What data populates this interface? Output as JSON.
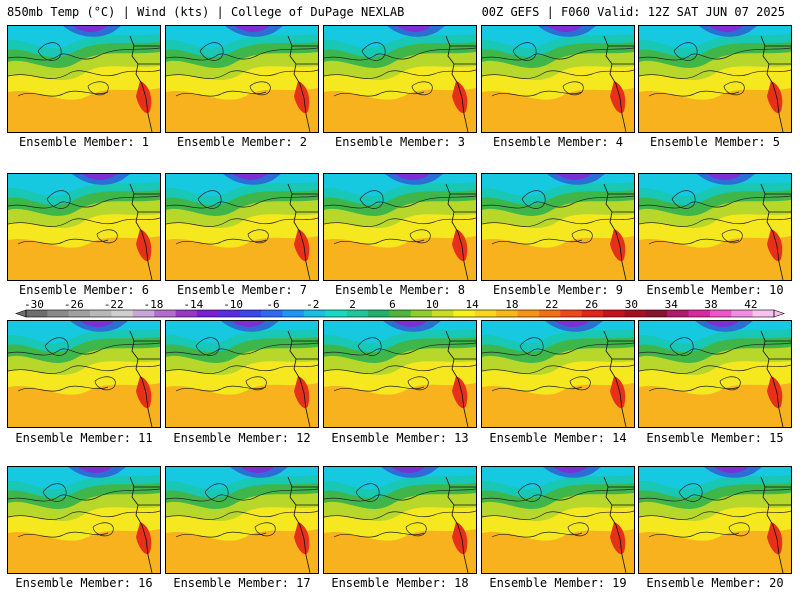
{
  "header": {
    "left": "850mb Temp (°C) | Wind (kts) | College of DuPage NEXLAB",
    "right": "00Z GEFS | F060 Valid: 12Z SAT JUN 07 2025"
  },
  "member_prefix": "Ensemble Member: ",
  "members": [
    {
      "id": "1"
    },
    {
      "id": "2"
    },
    {
      "id": "3"
    },
    {
      "id": "4"
    },
    {
      "id": "5"
    },
    {
      "id": "6"
    },
    {
      "id": "7"
    },
    {
      "id": "8"
    },
    {
      "id": "9"
    },
    {
      "id": "10"
    },
    {
      "id": "11"
    },
    {
      "id": "12"
    },
    {
      "id": "13"
    },
    {
      "id": "14"
    },
    {
      "id": "15"
    },
    {
      "id": "16"
    },
    {
      "id": "17"
    },
    {
      "id": "18"
    },
    {
      "id": "19"
    },
    {
      "id": "20"
    }
  ],
  "colorbar": {
    "tick_labels": [
      "-30",
      "-26",
      "-22",
      "-18",
      "-14",
      "-10",
      "-6",
      "-2",
      "2",
      "6",
      "10",
      "14",
      "18",
      "22",
      "26",
      "30",
      "34",
      "38",
      "42"
    ],
    "colors": [
      "#6e6e6e",
      "#8a8a8a",
      "#a0a0a0",
      "#b8b8b8",
      "#cfcfcf",
      "#c9a6d9",
      "#b36bd1",
      "#9a35c9",
      "#7a1fd1",
      "#5a2ee0",
      "#3a46e8",
      "#2a6cf0",
      "#1f95f5",
      "#18bde8",
      "#17d9c4",
      "#1fc79a",
      "#22b06a",
      "#4bb83a",
      "#8fcc2e",
      "#c9dd24",
      "#f5f01e",
      "#fbd41c",
      "#fab51a",
      "#f79418",
      "#f27018",
      "#ec4a18",
      "#e0261a",
      "#c2131c",
      "#a3101e",
      "#8a1230",
      "#b01a6a",
      "#d62aa0",
      "#ee55c8",
      "#f58ae0",
      "#f8c2ef"
    ]
  },
  "map_colors": {
    "warm": "#f59a1e",
    "orange": "#f7b21d",
    "yellow": "#f5e81f",
    "lime": "#b7d82a",
    "green": "#3fb64a",
    "teal": "#19c7b5",
    "cyan": "#17c9e0",
    "blue": "#2b6fd6",
    "purple": "#7b2fd6",
    "red": "#e6301a"
  }
}
